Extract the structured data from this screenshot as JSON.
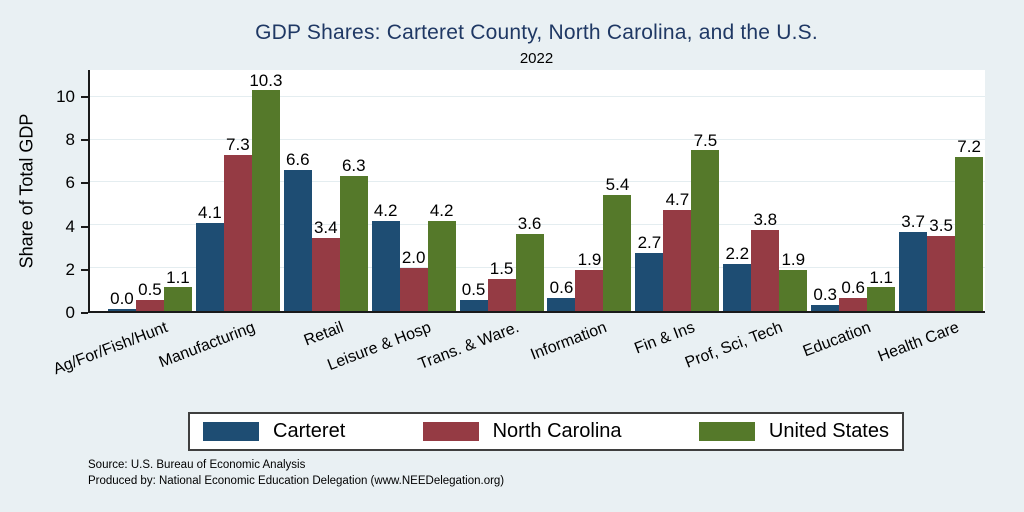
{
  "figure": {
    "title": "GDP Shares: Carteret County, North Carolina, and the U.S.",
    "subtitle": "2022"
  },
  "notes": {
    "source": "Source: U.S. Bureau of Economic Analysis",
    "produced_by": "Produced by: National Economic Education Delegation (www.NEEDelegation.org)"
  },
  "colors": {
    "background": "#e9f0f3",
    "plot_background": "#ffffff",
    "title_text": "#1f3864",
    "axis_line": "#1a1a1a",
    "gridline": "#e4edf0",
    "legend_border": "#3f3f3f",
    "series": {
      "Carteret": "#1e4d73",
      "North Carolina": "#953b44",
      "United States": "#55792a"
    }
  },
  "legend": {
    "items": [
      {
        "label": "Carteret",
        "color": "#1e4d73"
      },
      {
        "label": "North Carolina",
        "color": "#953b44"
      },
      {
        "label": "United States",
        "color": "#55792a"
      }
    ]
  },
  "chart_data": {
    "type": "bar",
    "title": "GDP Shares: Carteret County, North Carolina, and the U.S.",
    "subtitle": "2022",
    "xlabel": "",
    "ylabel": "Share of Total GDP",
    "ylim": [
      0,
      11.25
    ],
    "yticks": [
      0,
      2,
      4,
      6,
      8,
      10
    ],
    "grid": true,
    "legend_position": "bottom",
    "bar_value_labels": true,
    "value_label_decimals": 1,
    "categories": [
      "Ag/For/Fish/Hunt",
      "Manufacturing",
      "Retail",
      "Leisure & Hosp",
      "Trans. & Ware.",
      "Information",
      "Fin & Ins",
      "Prof, Sci, Tech",
      "Education",
      "Health Care"
    ],
    "series": [
      {
        "name": "Carteret",
        "values": [
          0.0,
          4.1,
          6.6,
          4.2,
          0.5,
          0.6,
          2.7,
          2.2,
          0.3,
          3.7
        ]
      },
      {
        "name": "North Carolina",
        "values": [
          0.5,
          7.3,
          3.4,
          2.0,
          1.5,
          1.9,
          4.7,
          3.8,
          0.6,
          3.5
        ]
      },
      {
        "name": "United States",
        "values": [
          1.1,
          10.3,
          6.3,
          4.2,
          3.6,
          5.4,
          7.5,
          1.9,
          1.1,
          7.2
        ]
      }
    ]
  }
}
